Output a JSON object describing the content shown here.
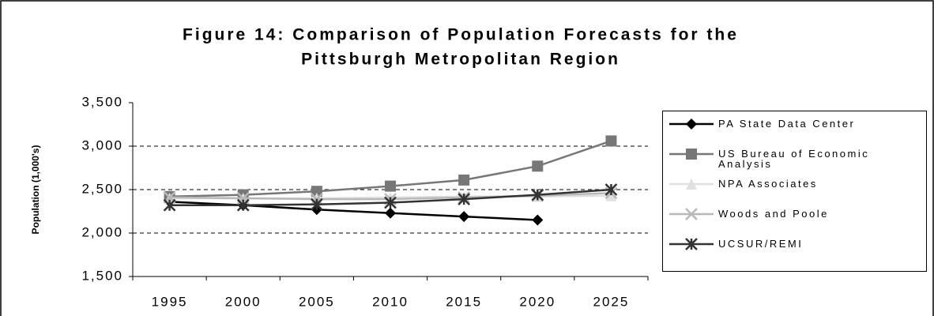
{
  "chart_data": {
    "type": "line",
    "title": "Figure 14: Comparison of Population Forecasts for the",
    "subtitle": "Pittsburgh Metropolitan Region",
    "y_label": "Population (1,000's)",
    "categories": [
      "1995",
      "2000",
      "2005",
      "2010",
      "2015",
      "2020",
      "2025"
    ],
    "series": [
      {
        "name": "PA State Data Center",
        "color": "#000000",
        "marker": "diamond",
        "values": [
          2360,
          2320,
          2270,
          2230,
          2190,
          2150,
          null
        ]
      },
      {
        "name": "US Bureau of Economic Analysis",
        "color": "#777777",
        "marker": "square",
        "values": [
          2420,
          2440,
          2480,
          2540,
          2610,
          2770,
          3060
        ]
      },
      {
        "name": "NPA Associates",
        "color": "#e0e0e0",
        "marker": "triangle",
        "values": [
          2400,
          2400,
          2400,
          2410,
          2420,
          2420,
          2430
        ]
      },
      {
        "name": "Woods and Poole",
        "color": "#b8b8b8",
        "marker": "x",
        "values": [
          2410,
          2400,
          2390,
          2390,
          2410,
          2430,
          2460
        ]
      },
      {
        "name": "UCSUR/REMI",
        "color": "#333333",
        "marker": "star",
        "values": [
          2320,
          2320,
          2330,
          2350,
          2390,
          2440,
          2500
        ]
      }
    ],
    "ylim": [
      1500,
      3500
    ],
    "yticks": [
      {
        "value": 1500,
        "label": "1,500"
      },
      {
        "value": 2000,
        "label": "2,000"
      },
      {
        "value": 2500,
        "label": "2,500"
      },
      {
        "value": 3000,
        "label": "3,000"
      },
      {
        "value": 3500,
        "label": "3,500"
      }
    ],
    "grid": true,
    "legend": "right"
  }
}
